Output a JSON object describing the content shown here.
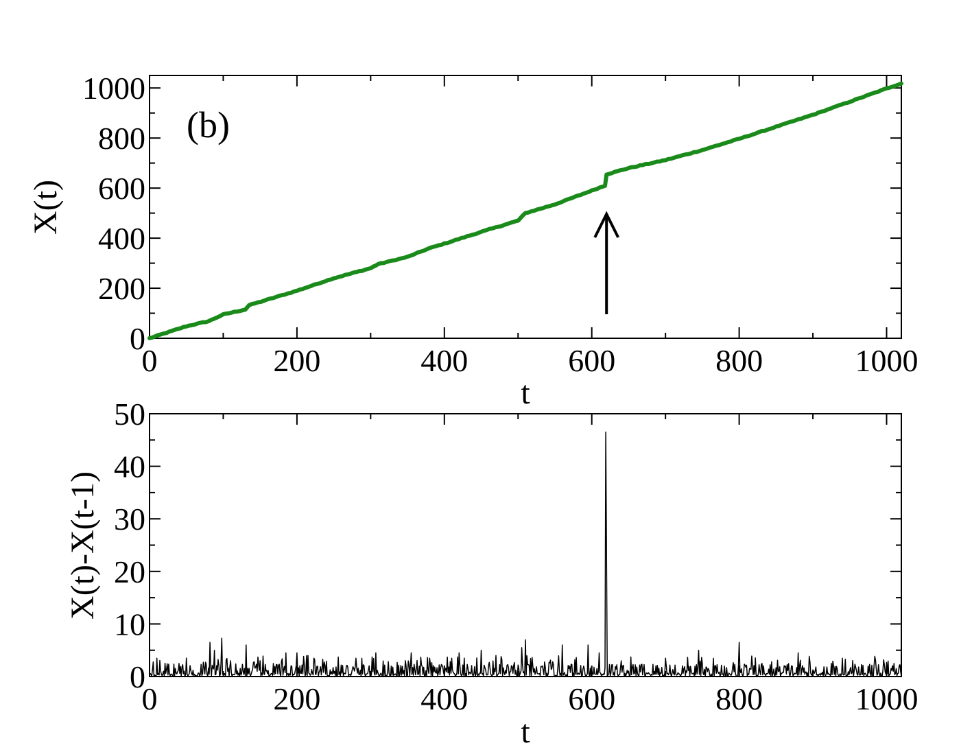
{
  "chart_data": [
    {
      "type": "line",
      "panel_label": "(b)",
      "xlabel": "t",
      "ylabel": "X(t)",
      "xlim": [
        0,
        1020
      ],
      "ylim": [
        0,
        1050
      ],
      "xticks": [
        0,
        200,
        400,
        600,
        800,
        1000
      ],
      "yticks": [
        0,
        200,
        400,
        600,
        800,
        1000
      ],
      "grid": false,
      "line_color": "#1a8a1a",
      "annotation": {
        "type": "arrow",
        "points_to_x": 620,
        "description": "jump"
      },
      "series": [
        {
          "x": [
            0,
            50,
            80,
            100,
            130,
            135,
            200,
            250,
            300,
            310,
            350,
            380,
            400,
            450,
            500,
            510,
            550,
            600,
            618,
            620,
            650,
            700,
            750,
            800,
            850,
            900,
            950,
            1000,
            1020
          ],
          "values": [
            0,
            48,
            68,
            95,
            115,
            132,
            190,
            240,
            280,
            296,
            325,
            360,
            378,
            425,
            470,
            500,
            535,
            590,
            610,
            655,
            680,
            712,
            752,
            797,
            845,
            893,
            945,
            998,
            1018
          ]
        }
      ]
    },
    {
      "type": "line",
      "xlabel": "t",
      "ylabel": "X(t)-X(t-1)",
      "xlim": [
        0,
        1020
      ],
      "ylim": [
        0,
        50
      ],
      "xticks": [
        0,
        200,
        400,
        600,
        800,
        1000
      ],
      "yticks": [
        0,
        10,
        20,
        30,
        40,
        50
      ],
      "grid": false,
      "line_color": "#000000",
      "peaks": [
        {
          "x": 5,
          "y": 2.8
        },
        {
          "x": 40,
          "y": 2.5
        },
        {
          "x": 82,
          "y": 6.5
        },
        {
          "x": 88,
          "y": 5.0
        },
        {
          "x": 98,
          "y": 7.3
        },
        {
          "x": 110,
          "y": 3.0
        },
        {
          "x": 131,
          "y": 6.0
        },
        {
          "x": 150,
          "y": 3.0
        },
        {
          "x": 185,
          "y": 4.5
        },
        {
          "x": 200,
          "y": 4.5
        },
        {
          "x": 223,
          "y": 3.5
        },
        {
          "x": 280,
          "y": 3.5
        },
        {
          "x": 307,
          "y": 4.5
        },
        {
          "x": 355,
          "y": 4.5
        },
        {
          "x": 380,
          "y": 3.5
        },
        {
          "x": 420,
          "y": 4.5
        },
        {
          "x": 450,
          "y": 5.0
        },
        {
          "x": 470,
          "y": 4.0
        },
        {
          "x": 505,
          "y": 5.5
        },
        {
          "x": 510,
          "y": 7.0
        },
        {
          "x": 560,
          "y": 6.0
        },
        {
          "x": 595,
          "y": 6.0
        },
        {
          "x": 610,
          "y": 4.5
        },
        {
          "x": 619,
          "y": 46.5
        },
        {
          "x": 620,
          "y": 23.5
        },
        {
          "x": 640,
          "y": 3.0
        },
        {
          "x": 700,
          "y": 3.5
        },
        {
          "x": 745,
          "y": 5.0
        },
        {
          "x": 800,
          "y": 6.5
        },
        {
          "x": 880,
          "y": 4.5
        },
        {
          "x": 940,
          "y": 3.5
        },
        {
          "x": 1010,
          "y": 2.5
        }
      ]
    }
  ]
}
